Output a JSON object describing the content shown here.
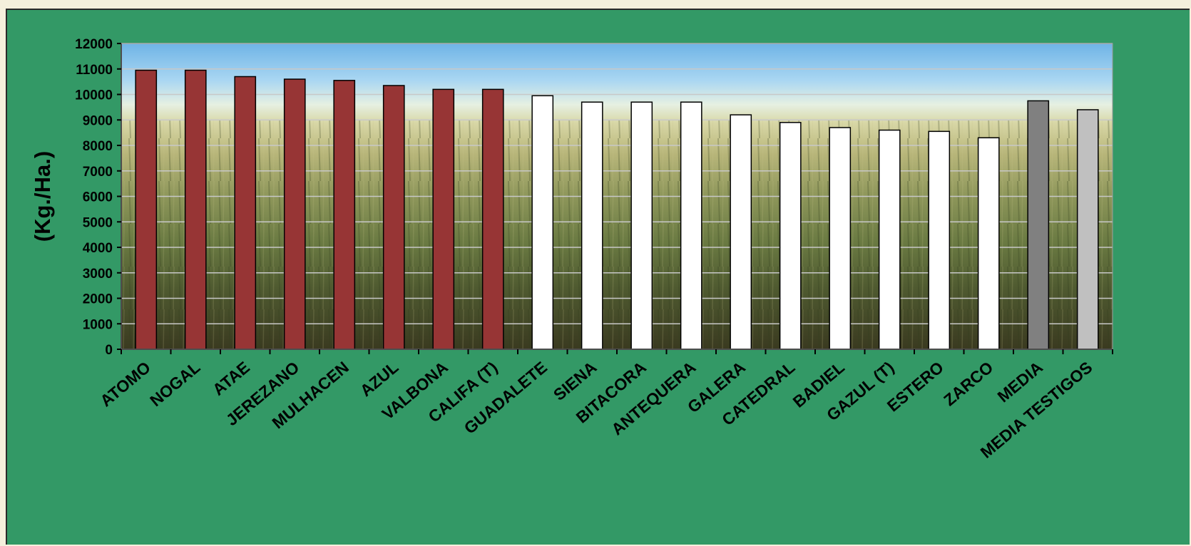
{
  "chart_data": {
    "type": "bar",
    "ylabel": "(Kg./Ha.)",
    "xlabel": "",
    "ylim": [
      0,
      12000
    ],
    "yticks": [
      0,
      1000,
      2000,
      3000,
      4000,
      5000,
      6000,
      7000,
      8000,
      9000,
      10000,
      11000,
      12000
    ],
    "grid": true,
    "background": "wheat-field photograph",
    "categories": [
      "ATOMO",
      "NOGAL",
      "ATAE",
      "JEREZANO",
      "MULHACEN",
      "AZUL",
      "VALBONA",
      "CALIFA (T)",
      "GUADALETE",
      "SIENA",
      "BITACORA",
      "ANTEQUERA",
      "GALERA",
      "CATEDRAL",
      "BADIEL",
      "GAZUL (T)",
      "ESTERO",
      "ZARCO",
      "MEDIA",
      "MEDIA TESTIGOS"
    ],
    "values": [
      10950,
      10950,
      10700,
      10600,
      10550,
      10350,
      10200,
      10200,
      9950,
      9700,
      9700,
      9700,
      9200,
      8900,
      8700,
      8600,
      8550,
      8300,
      9750,
      9400
    ],
    "bar_colors": [
      "#973535",
      "#973535",
      "#973535",
      "#973535",
      "#973535",
      "#973535",
      "#973535",
      "#973535",
      "#ffffff",
      "#ffffff",
      "#ffffff",
      "#ffffff",
      "#ffffff",
      "#ffffff",
      "#ffffff",
      "#ffffff",
      "#ffffff",
      "#ffffff",
      "#808080",
      "#c0c0c0"
    ],
    "frame_color": "#339966"
  }
}
